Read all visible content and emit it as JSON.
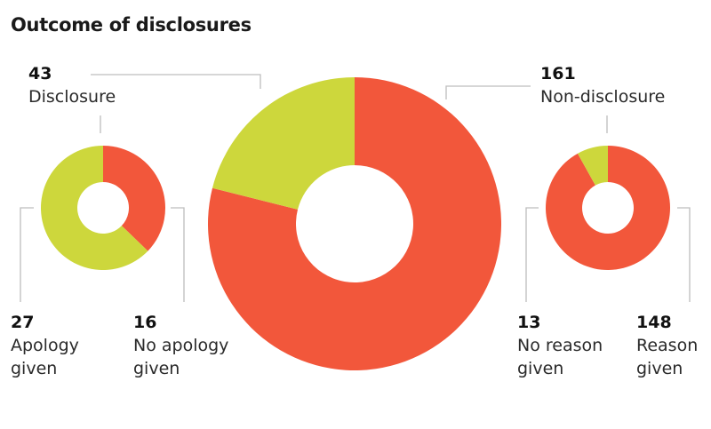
{
  "title": "Outcome of disclosures",
  "colors": {
    "red": "#f2573b",
    "green": "#cdd73c",
    "leader": "#bdbdbd"
  },
  "chart_data": [
    {
      "type": "pie",
      "name": "main",
      "slices": [
        {
          "label": "Non-disclosure",
          "value": 161,
          "color": "red"
        },
        {
          "label": "Disclosure",
          "value": 43,
          "color": "green"
        }
      ]
    },
    {
      "type": "pie",
      "name": "disclosure",
      "slices": [
        {
          "label": "No apology given",
          "value": 16,
          "color": "red"
        },
        {
          "label": "Apology given",
          "value": 27,
          "color": "green"
        }
      ]
    },
    {
      "type": "pie",
      "name": "non-disclosure",
      "slices": [
        {
          "label": "Reason given",
          "value": 148,
          "color": "red"
        },
        {
          "label": "No reason given",
          "value": 13,
          "color": "green"
        }
      ]
    }
  ],
  "labels": {
    "disclosure": {
      "num": "43",
      "text": "Disclosure"
    },
    "non_disclosure": {
      "num": "161",
      "text": "Non-disclosure"
    },
    "apology": {
      "num": "27",
      "text": "Apology given"
    },
    "no_apology": {
      "num": "16",
      "text": "No apology given"
    },
    "no_reason": {
      "num": "13",
      "text": "No reason given"
    },
    "reason": {
      "num": "148",
      "text": "Reason given"
    }
  }
}
